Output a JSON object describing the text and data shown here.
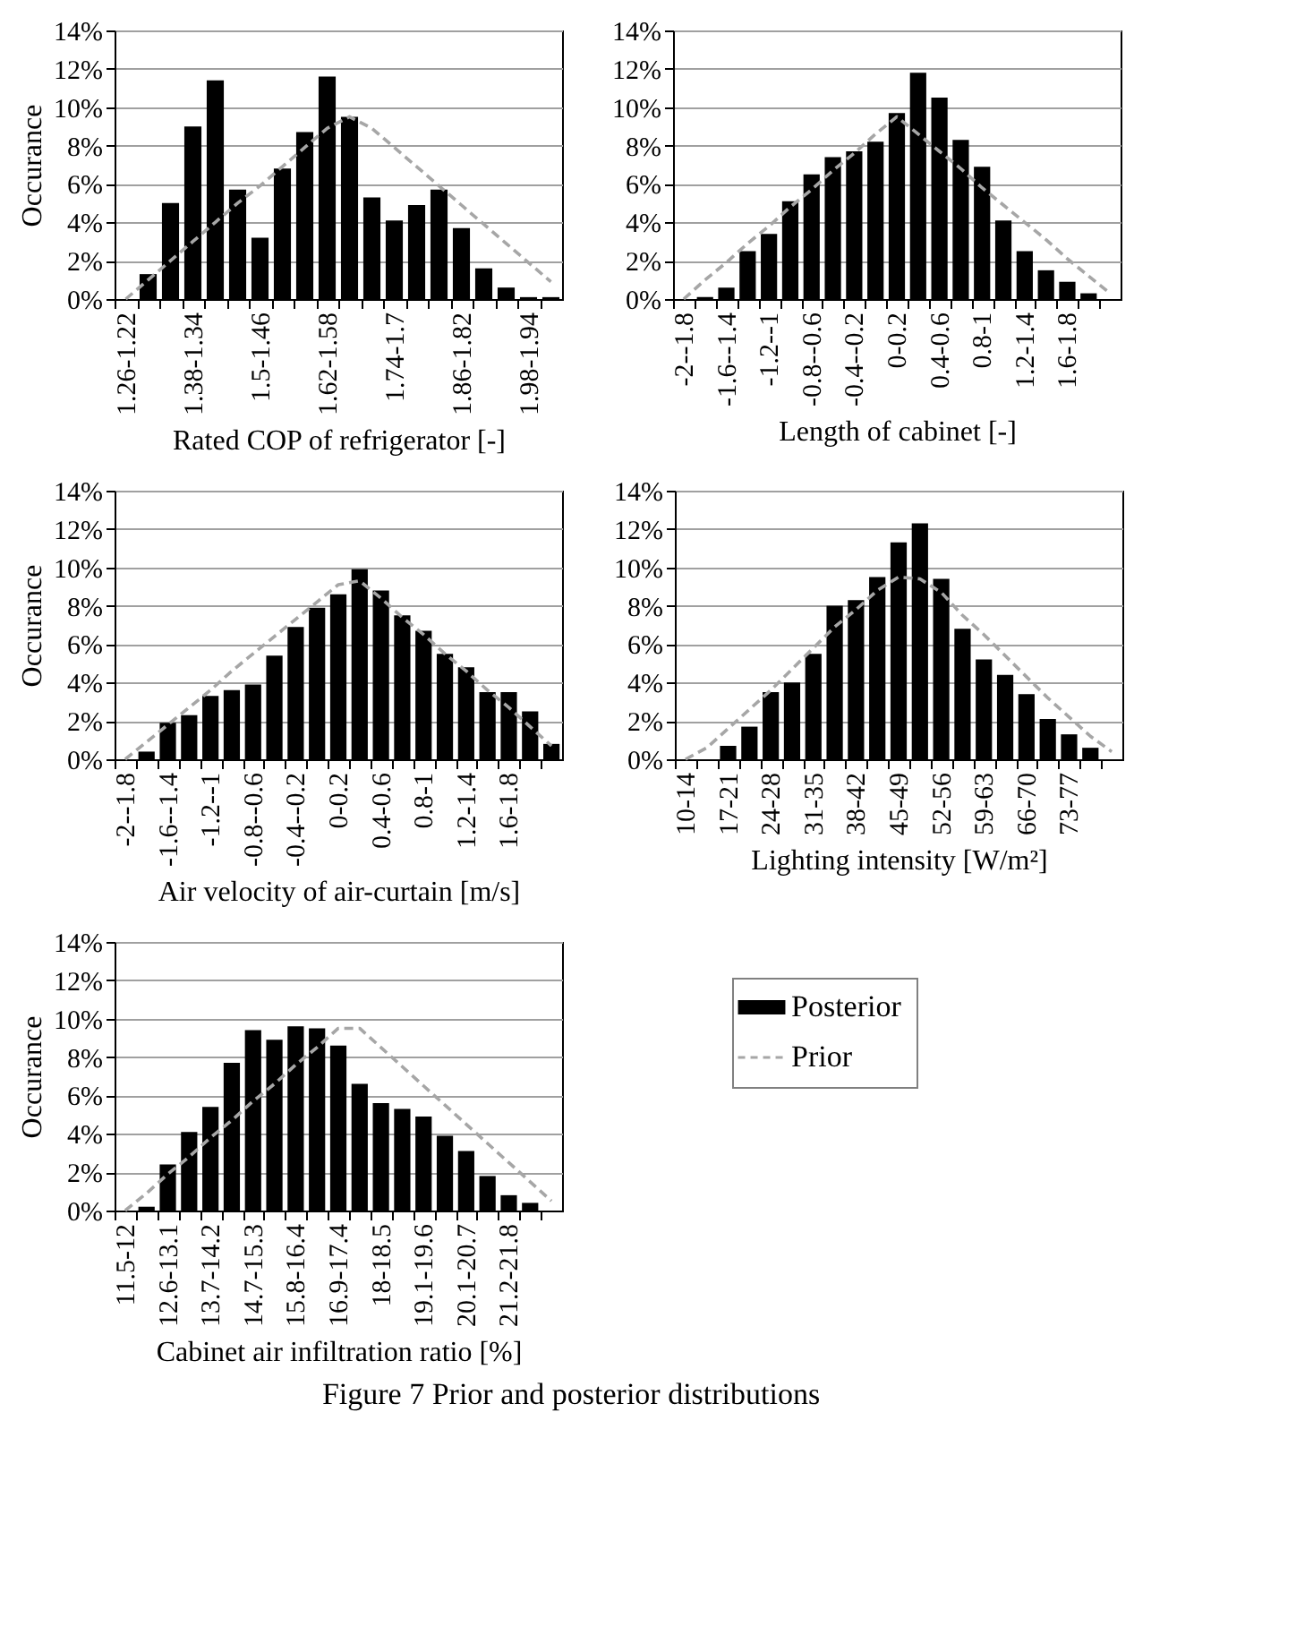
{
  "chart_data": [
    {
      "type": "bar",
      "xlabel": "Rated COP of refrigerator [-]",
      "ylabel": "Occurance",
      "categories": [
        "1.26-1.22",
        null,
        null,
        "1.38-1.34",
        null,
        null,
        "1.5-1.46",
        null,
        null,
        "1.62-1.58",
        null,
        null,
        "1.74-1.7",
        null,
        null,
        "1.86-1.82",
        null,
        null,
        "1.98-1.94",
        null
      ],
      "series": [
        {
          "color": "#000000",
          "values": [
            0,
            1.3,
            5.0,
            9.0,
            11.4,
            5.7,
            3.2,
            6.8,
            8.7,
            11.6,
            9.5,
            5.3,
            4.1,
            4.9,
            5.7,
            3.7,
            1.6,
            0.6,
            0.1,
            0.1
          ]
        },
        {
          "type": "line",
          "line_style": "dashed",
          "color": "#a6a6a6",
          "values": [
            0,
            1.0,
            2.0,
            3.0,
            4.0,
            5.0,
            5.9,
            6.9,
            7.9,
            8.9,
            9.5,
            8.9,
            7.9,
            6.9,
            5.9,
            4.9,
            3.9,
            2.9,
            1.9,
            0.9
          ]
        }
      ],
      "ylim": [
        0,
        14
      ],
      "yticks": [
        {
          "value": 0,
          "label": "0%"
        },
        {
          "value": 2,
          "label": "2%"
        },
        {
          "value": 4,
          "label": "4%"
        },
        {
          "value": 6,
          "label": "6%"
        },
        {
          "value": 8,
          "label": "8%"
        },
        {
          "value": 10,
          "label": "10%"
        },
        {
          "value": 12,
          "label": "12%"
        },
        {
          "value": 14,
          "label": "14%"
        }
      ],
      "grid": "y"
    },
    {
      "type": "bar",
      "xlabel": "Length of cabinet [-]",
      "categories": [
        "-2--1.8",
        null,
        "-1.6--1.4",
        null,
        "-1.2--1",
        null,
        "-0.8--0.6",
        null,
        "-0.4--0.2",
        null,
        "0-0.2",
        null,
        "0.4-0.6",
        null,
        "0.8-1",
        null,
        "1.2-1.4",
        null,
        "1.6-1.8",
        null,
        null
      ],
      "series": [
        {
          "color": "#000000",
          "values": [
            0,
            0.1,
            0.6,
            2.5,
            3.4,
            5.1,
            6.5,
            7.4,
            7.7,
            8.2,
            9.7,
            11.8,
            10.5,
            8.3,
            6.9,
            4.1,
            2.5,
            1.5,
            0.9,
            0.3,
            0
          ]
        },
        {
          "type": "line",
          "line_style": "dashed",
          "color": "#a6a6a6",
          "values": [
            0,
            1.0,
            1.9,
            2.9,
            3.8,
            4.8,
            5.7,
            6.7,
            7.6,
            8.6,
            9.5,
            8.6,
            7.7,
            6.8,
            5.8,
            4.9,
            4.0,
            3.1,
            2.1,
            1.2,
            0.3
          ]
        }
      ],
      "ylim": [
        0,
        14
      ],
      "yticks": [
        {
          "value": 0,
          "label": "0%"
        },
        {
          "value": 2,
          "label": "2%"
        },
        {
          "value": 4,
          "label": "4%"
        },
        {
          "value": 6,
          "label": "6%"
        },
        {
          "value": 8,
          "label": "8%"
        },
        {
          "value": 10,
          "label": "10%"
        },
        {
          "value": 12,
          "label": "12%"
        },
        {
          "value": 14,
          "label": "14%"
        }
      ],
      "grid": "y"
    },
    {
      "type": "bar",
      "xlabel": "Air velocity of air-curtain [m/s]",
      "ylabel": "Occurance",
      "categories": [
        "-2--1.8",
        null,
        "-1.6--1.4",
        null,
        "-1.2--1",
        null,
        "-0.8--0.6",
        null,
        "-0.4--0.2",
        null,
        "0-0.2",
        null,
        "0.4-0.6",
        null,
        "0.8-1",
        null,
        "1.2-1.4",
        null,
        "1.6-1.8",
        null,
        null
      ],
      "series": [
        {
          "color": "#000000",
          "values": [
            0,
            0.4,
            1.9,
            2.3,
            3.3,
            3.6,
            3.9,
            5.4,
            6.9,
            7.9,
            8.6,
            9.9,
            8.8,
            7.5,
            6.7,
            5.5,
            4.8,
            3.5,
            3.5,
            2.5,
            0.8
          ]
        },
        {
          "type": "line",
          "line_style": "dashed",
          "color": "#a6a6a6",
          "values": [
            0,
            0.9,
            1.8,
            2.7,
            3.6,
            4.6,
            5.5,
            6.4,
            7.3,
            8.2,
            9.1,
            9.3,
            8.4,
            7.4,
            6.5,
            5.5,
            4.6,
            3.6,
            2.7,
            1.7,
            0.7
          ]
        }
      ],
      "ylim": [
        0,
        14
      ],
      "yticks": [
        {
          "value": 0,
          "label": "0%"
        },
        {
          "value": 2,
          "label": "2%"
        },
        {
          "value": 4,
          "label": "4%"
        },
        {
          "value": 6,
          "label": "6%"
        },
        {
          "value": 8,
          "label": "8%"
        },
        {
          "value": 10,
          "label": "10%"
        },
        {
          "value": 12,
          "label": "12%"
        },
        {
          "value": 14,
          "label": "14%"
        }
      ],
      "grid": "y"
    },
    {
      "type": "bar",
      "xlabel": "Lighting intensity [W/m²]",
      "categories": [
        "10-14",
        null,
        "17-21",
        null,
        "24-28",
        null,
        "31-35",
        null,
        "38-42",
        null,
        "45-49",
        null,
        "52-56",
        null,
        "59-63",
        null,
        "66-70",
        null,
        "73-77",
        null,
        null
      ],
      "series": [
        {
          "color": "#000000",
          "values": [
            0,
            0,
            0.7,
            1.7,
            3.5,
            4.0,
            5.5,
            8.0,
            8.3,
            9.5,
            11.3,
            12.3,
            9.4,
            6.8,
            5.2,
            4.4,
            3.4,
            2.1,
            1.3,
            0.6,
            0
          ]
        },
        {
          "type": "line",
          "line_style": "dashed",
          "color": "#a6a6a6",
          "values": [
            0,
            0.6,
            1.6,
            2.6,
            3.6,
            4.7,
            5.8,
            6.9,
            7.8,
            8.8,
            9.5,
            9.4,
            8.7,
            7.5,
            6.5,
            5.4,
            4.3,
            3.2,
            2.2,
            1.2,
            0.4
          ]
        }
      ],
      "ylim": [
        0,
        14
      ],
      "yticks": [
        {
          "value": 0,
          "label": "0%"
        },
        {
          "value": 2,
          "label": "2%"
        },
        {
          "value": 4,
          "label": "4%"
        },
        {
          "value": 6,
          "label": "6%"
        },
        {
          "value": 8,
          "label": "8%"
        },
        {
          "value": 10,
          "label": "10%"
        },
        {
          "value": 12,
          "label": "12%"
        },
        {
          "value": 14,
          "label": "14%"
        }
      ],
      "grid": "y"
    },
    {
      "type": "bar",
      "xlabel": "Cabinet air infiltration ratio [%]",
      "ylabel": "Occurance",
      "categories": [
        "11.5-12",
        null,
        "12.6-13.1",
        null,
        "13.7-14.2",
        null,
        "14.7-15.3",
        null,
        "15.8-16.4",
        null,
        "16.9-17.4",
        null,
        "18-18.5",
        null,
        "19.1-19.6",
        null,
        "20.1-20.7",
        null,
        "21.2-21.8",
        null,
        null
      ],
      "series": [
        {
          "name": "Posterior",
          "color": "#000000",
          "values": [
            0,
            0.2,
            2.4,
            4.1,
            5.4,
            7.7,
            9.4,
            8.9,
            9.6,
            9.5,
            8.6,
            6.6,
            5.6,
            5.3,
            4.9,
            3.9,
            3.1,
            1.8,
            0.8,
            0.4,
            0
          ]
        },
        {
          "name": "Prior",
          "type": "line",
          "line_style": "dashed",
          "color": "#a6a6a6",
          "values": [
            0,
            0.9,
            1.9,
            2.8,
            3.8,
            4.7,
            5.7,
            6.6,
            7.6,
            8.5,
            9.5,
            9.5,
            8.5,
            7.5,
            6.5,
            5.5,
            4.5,
            3.5,
            2.5,
            1.5,
            0.5
          ]
        }
      ],
      "ylim": [
        0,
        14
      ],
      "yticks": [
        {
          "value": 0,
          "label": "0%"
        },
        {
          "value": 2,
          "label": "2%"
        },
        {
          "value": 4,
          "label": "4%"
        },
        {
          "value": 6,
          "label": "6%"
        },
        {
          "value": 8,
          "label": "8%"
        },
        {
          "value": 10,
          "label": "10%"
        },
        {
          "value": 12,
          "label": "12%"
        },
        {
          "value": 14,
          "label": "14%"
        }
      ],
      "grid": "y",
      "legend": "right",
      "annotations": [
        "Figure 7 Prior and posterior distributions"
      ]
    }
  ]
}
